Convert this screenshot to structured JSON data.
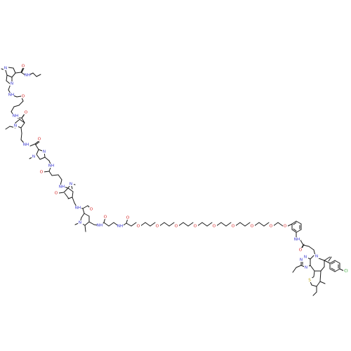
{
  "colors": {
    "background": "#ffffff",
    "bond": "#1a1a1a",
    "carbon_label": "#1a1a1a",
    "nitrogen": "#2d2dcc",
    "oxygen": "#d42020",
    "sulfur": "#b8a000",
    "chlorine": "#1e9e1e"
  },
  "atoms": {
    "n_methyl_1": "N",
    "methyl_1": "CH3",
    "nh_propyl": "NH",
    "o_carbonyl_1": "O",
    "n_ring_1": "N",
    "nh_1": "NH",
    "o_amide_1": "O",
    "nh_2": "NH",
    "o_amide_2": "O",
    "n_pyrrole_2": "N",
    "methyl_2": "CH3",
    "nh_3": "NH",
    "o_amide_3": "O",
    "n_ring_3": "N",
    "n_methyl_3": "N",
    "methyl_3": "CH3",
    "nh_4": "NH",
    "o_amide_4": "O",
    "nh_5": "NH",
    "o_amide_5": "O",
    "n_pyrrole_4": "N",
    "methyl_4": "CH3",
    "nh_6": "NH",
    "o_amide_6": "O",
    "n_pyrrole_5": "N",
    "methyl_5": "CH3",
    "nh_7": "NH",
    "o_amide_7": "O",
    "nh_8": "NH",
    "o_amide_8": "O",
    "o_peg_1": "O",
    "o_peg_2": "O",
    "o_peg_3": "O",
    "o_peg_4": "O",
    "o_peg_5": "O",
    "o_peg_6": "O",
    "o_peg_7": "O",
    "o_peg_8": "O",
    "o_peg_9": "O",
    "o_aryl_ether": "O",
    "nh_anilide": "NH",
    "o_anilide": "O",
    "n_azepine": "N",
    "n_triazole_1": "N",
    "n_triazole_2": "N",
    "n_triazole_3": "N",
    "methyl_triazole": "CH3",
    "s_thiophene": "S",
    "methyl_thio_1": "CH3",
    "methyl_thio_2": "CH3",
    "cl": "Cl"
  }
}
